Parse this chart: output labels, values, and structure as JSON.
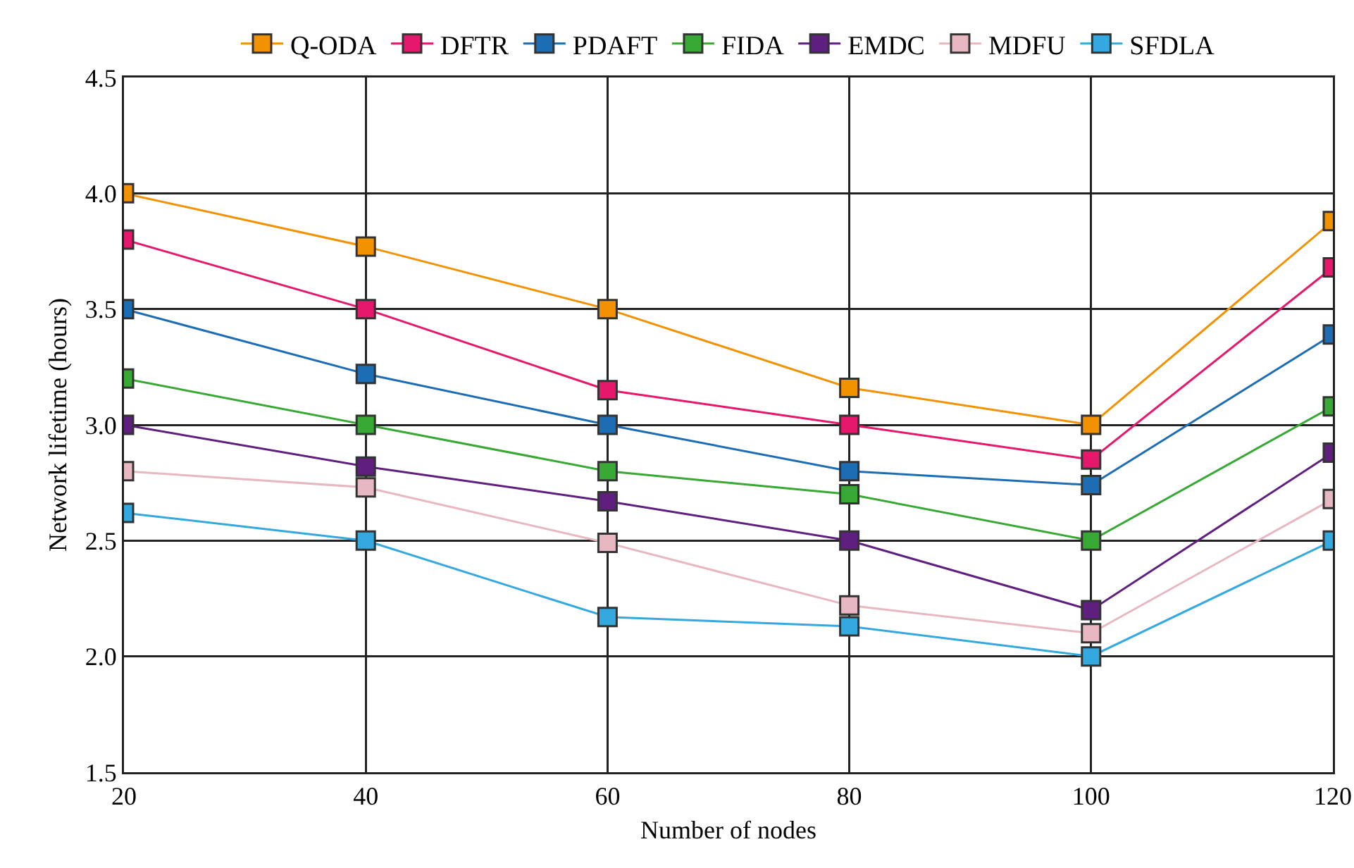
{
  "chart_data": {
    "type": "line",
    "xlabel": "Number of nodes",
    "ylabel": "Network lifetime (hours)",
    "x": [
      20,
      40,
      60,
      80,
      100,
      120
    ],
    "xlim": [
      20,
      120
    ],
    "xticks": [
      20,
      40,
      60,
      80,
      100,
      120
    ],
    "ylim": [
      1.5,
      4.5
    ],
    "yticks": [
      {
        "value": 1.5,
        "label": "1.5"
      },
      {
        "value": 2,
        "label": "2.0"
      },
      {
        "value": 2.5,
        "label": "2.5"
      },
      {
        "value": 3,
        "label": "3.0"
      },
      {
        "value": 3.5,
        "label": "3.5"
      },
      {
        "value": 4,
        "label": "4.0"
      },
      {
        "value": 4.5,
        "label": "4.5"
      }
    ],
    "grid": true,
    "legend": "top",
    "marker": "square",
    "line_style": "solid",
    "series": [
      {
        "name": "Q-ODA",
        "color": "#f39200",
        "values": [
          4.0,
          3.77,
          3.5,
          3.16,
          3.0,
          3.88
        ]
      },
      {
        "name": "DFTR",
        "color": "#e6186b",
        "values": [
          3.8,
          3.5,
          3.15,
          3.0,
          2.85,
          3.68
        ]
      },
      {
        "name": "PDAFT",
        "color": "#1d6db5",
        "values": [
          3.5,
          3.22,
          3.0,
          2.8,
          2.74,
          3.39
        ]
      },
      {
        "name": "FIDA",
        "color": "#39a935",
        "values": [
          3.2,
          3.0,
          2.8,
          2.7,
          2.5,
          3.08
        ]
      },
      {
        "name": "EMDC",
        "color": "#5f1f7e",
        "values": [
          3.0,
          2.82,
          2.67,
          2.5,
          2.2,
          2.88
        ]
      },
      {
        "name": "MDFU",
        "color": "#e8b8c2",
        "values": [
          2.8,
          2.73,
          2.49,
          2.22,
          2.1,
          2.68
        ]
      },
      {
        "name": "SFDLA",
        "color": "#34a9e0",
        "values": [
          2.62,
          2.5,
          2.17,
          2.13,
          2.0,
          2.5
        ]
      }
    ]
  }
}
